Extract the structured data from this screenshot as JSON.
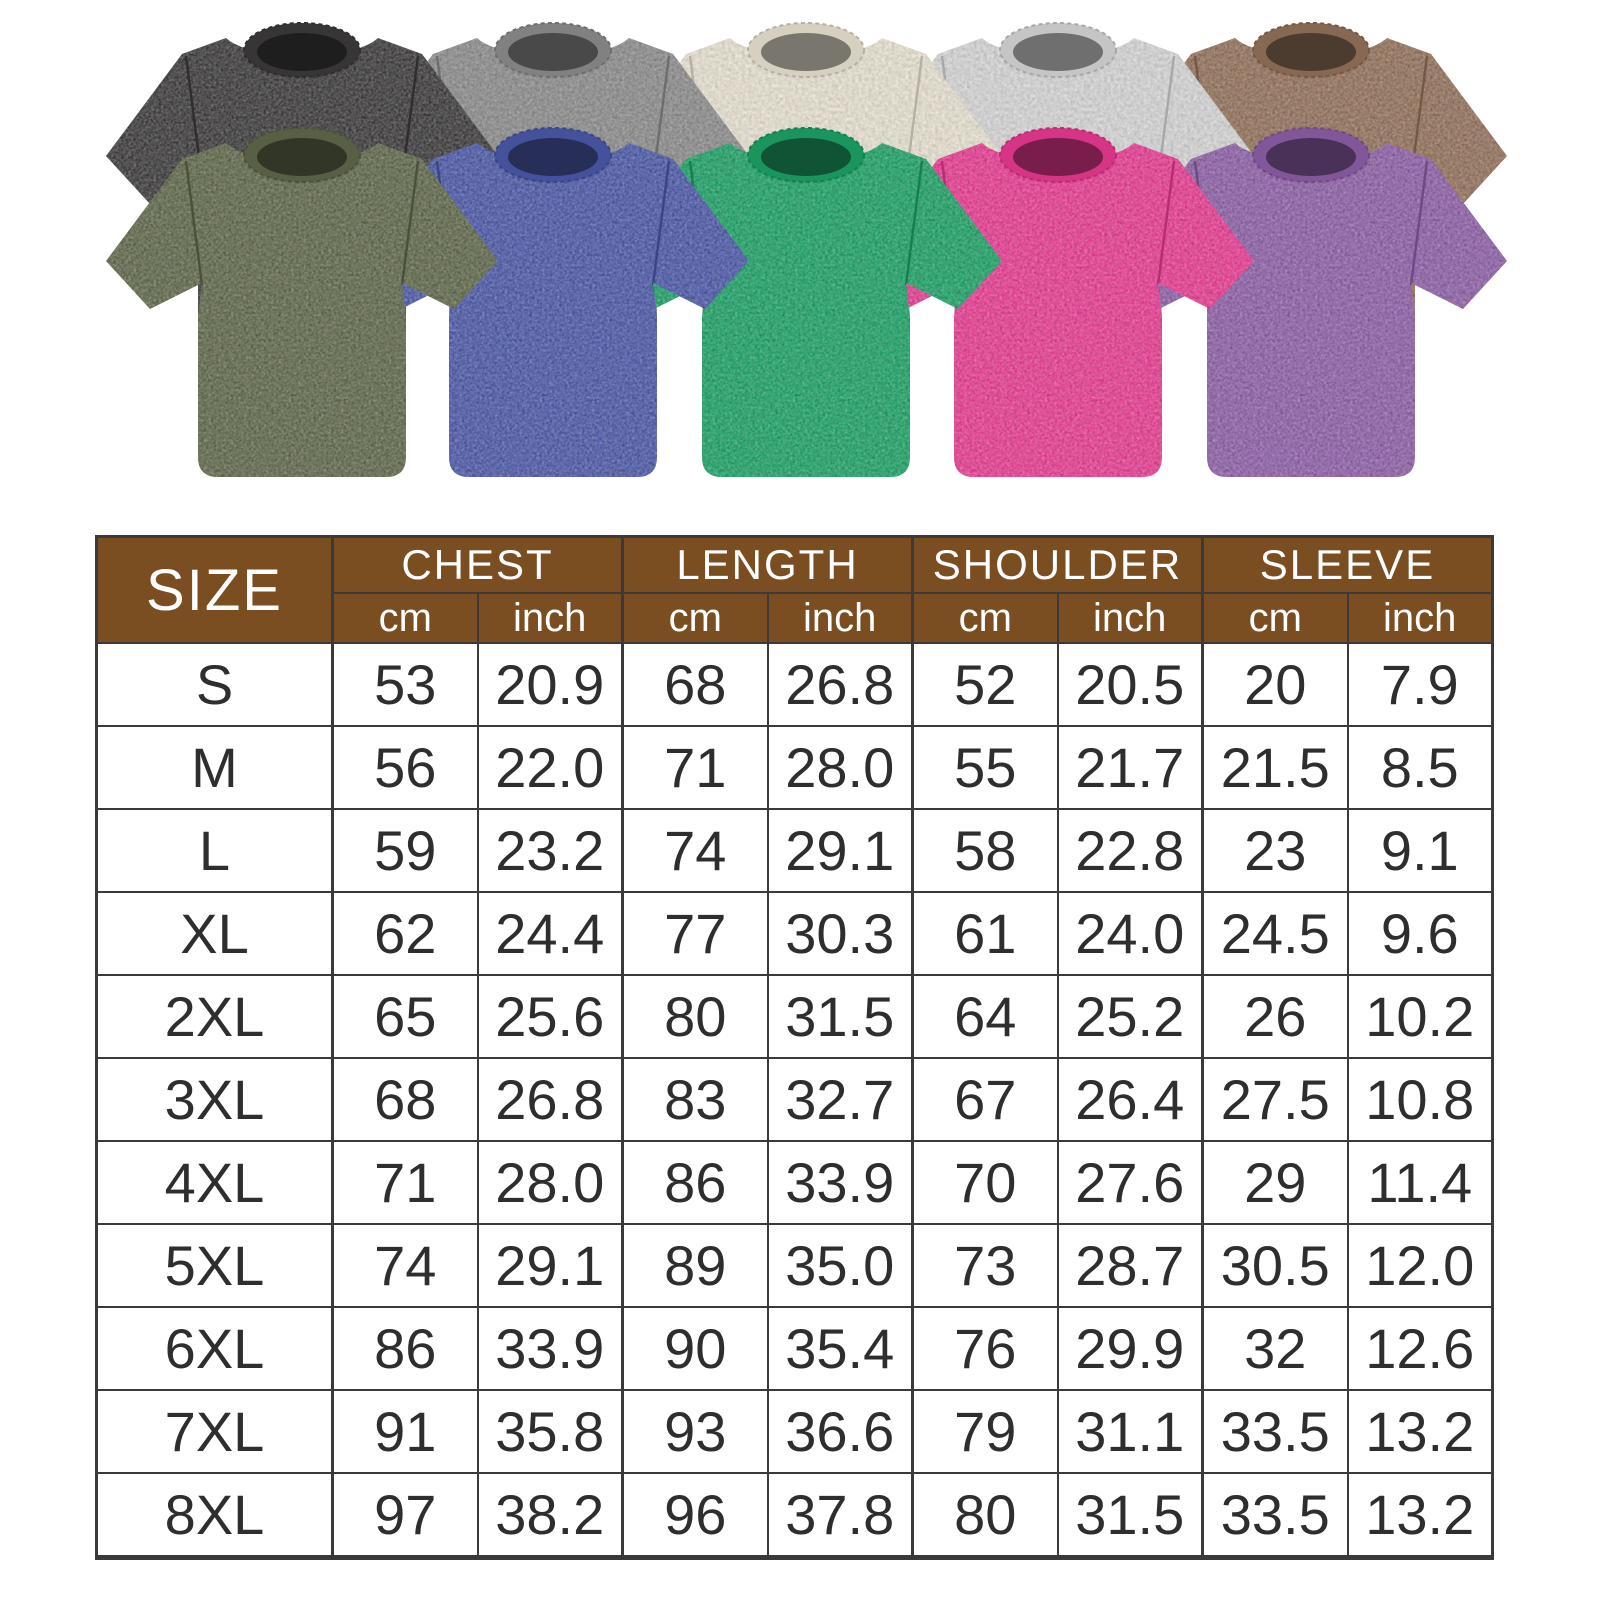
{
  "page": {
    "background": "#ffffff",
    "table_line_color": "#3a3a3a",
    "header_bg": "#7A4E21",
    "header_text_color": "#ffffff",
    "body_text_color": "#2e2e2e"
  },
  "product_gallery": {
    "description": "ten washed cotton oversized t-shirts, two overlapping rows",
    "shirts": [
      {
        "name": "washed-black",
        "row": "back",
        "color": "#3c3a3a"
      },
      {
        "name": "washed-gray",
        "row": "back",
        "color": "#8d8c8c"
      },
      {
        "name": "washed-cream",
        "row": "back",
        "color": "#e9e2d2"
      },
      {
        "name": "washed-light-gray",
        "row": "back",
        "color": "#d6d6d6"
      },
      {
        "name": "washed-brown",
        "row": "back",
        "color": "#93715a"
      },
      {
        "name": "washed-army-green",
        "row": "front",
        "color": "#5f684a"
      },
      {
        "name": "washed-blue",
        "row": "front",
        "color": "#4b58a8"
      },
      {
        "name": "washed-green",
        "row": "front",
        "color": "#1ca266"
      },
      {
        "name": "washed-rose",
        "row": "front",
        "color": "#e93a92"
      },
      {
        "name": "washed-purple",
        "row": "front",
        "color": "#8d5fa7"
      }
    ]
  },
  "size_chart": {
    "size_label": "SIZE",
    "groups": [
      {
        "label": "CHEST",
        "sub": [
          "cm",
          "inch"
        ]
      },
      {
        "label": "LENGTH",
        "sub": [
          "cm",
          "inch"
        ]
      },
      {
        "label": "SHOULDER",
        "sub": [
          "cm",
          "inch"
        ]
      },
      {
        "label": "SLEEVE",
        "sub": [
          "cm",
          "inch"
        ]
      }
    ],
    "rows": [
      {
        "size": "S",
        "values": [
          "53",
          "20.9",
          "68",
          "26.8",
          "52",
          "20.5",
          "20",
          "7.9"
        ]
      },
      {
        "size": "M",
        "values": [
          "56",
          "22.0",
          "71",
          "28.0",
          "55",
          "21.7",
          "21.5",
          "8.5"
        ]
      },
      {
        "size": "L",
        "values": [
          "59",
          "23.2",
          "74",
          "29.1",
          "58",
          "22.8",
          "23",
          "9.1"
        ]
      },
      {
        "size": "XL",
        "values": [
          "62",
          "24.4",
          "77",
          "30.3",
          "61",
          "24.0",
          "24.5",
          "9.6"
        ]
      },
      {
        "size": "2XL",
        "values": [
          "65",
          "25.6",
          "80",
          "31.5",
          "64",
          "25.2",
          "26",
          "10.2"
        ]
      },
      {
        "size": "3XL",
        "values": [
          "68",
          "26.8",
          "83",
          "32.7",
          "67",
          "26.4",
          "27.5",
          "10.8"
        ]
      },
      {
        "size": "4XL",
        "values": [
          "71",
          "28.0",
          "86",
          "33.9",
          "70",
          "27.6",
          "29",
          "11.4"
        ]
      },
      {
        "size": "5XL",
        "values": [
          "74",
          "29.1",
          "89",
          "35.0",
          "73",
          "28.7",
          "30.5",
          "12.0"
        ]
      },
      {
        "size": "6XL",
        "values": [
          "86",
          "33.9",
          "90",
          "35.4",
          "76",
          "29.9",
          "32",
          "12.6"
        ]
      },
      {
        "size": "7XL",
        "values": [
          "91",
          "35.8",
          "93",
          "36.6",
          "79",
          "31.1",
          "33.5",
          "13.2"
        ]
      },
      {
        "size": "8XL",
        "values": [
          "97",
          "38.2",
          "96",
          "37.8",
          "80",
          "31.5",
          "33.5",
          "13.2"
        ]
      }
    ]
  }
}
